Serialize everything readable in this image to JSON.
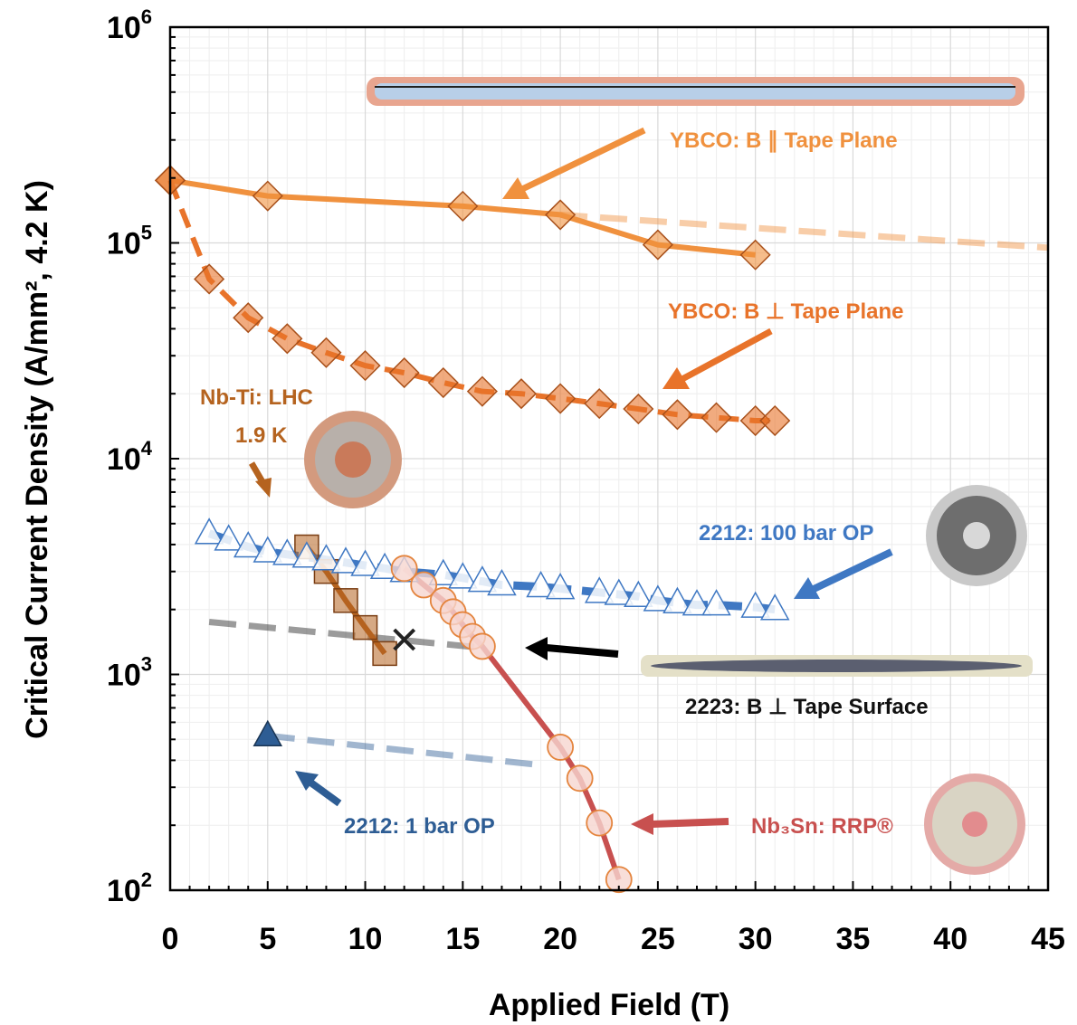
{
  "chart_data": {
    "type": "line",
    "xlabel": "Applied Field (T)",
    "ylabel": "Critical Current Density (A/mm², 4.2 K)",
    "xlim": [
      0,
      45
    ],
    "ylim": [
      100,
      1000000
    ],
    "yscale": "log",
    "grid": true,
    "x_ticks": [
      "0",
      "5",
      "10",
      "15",
      "20",
      "25",
      "30",
      "35",
      "40",
      "45"
    ],
    "y_ticks": [
      {
        "value": 100,
        "base": "10",
        "exp": "2"
      },
      {
        "value": 1000,
        "base": "10",
        "exp": "3"
      },
      {
        "value": 10000,
        "base": "10",
        "exp": "4"
      },
      {
        "value": 100000,
        "base": "10",
        "exp": "5"
      },
      {
        "value": 1000000,
        "base": "10",
        "exp": "6"
      }
    ],
    "series": [
      {
        "name": "YBCO: B ∥ Tape Plane",
        "color": "#f0913e",
        "marker": "diamond",
        "x": [
          0,
          5,
          15,
          20,
          25,
          30
        ],
        "y": [
          195000,
          165000,
          148000,
          135000,
          98000,
          88000
        ],
        "extrapolation": {
          "x": [
            20,
            45
          ],
          "y": [
            135000,
            95000
          ]
        }
      },
      {
        "name": "YBCO: B ⊥ Tape Plane",
        "color": "#e8732a",
        "marker": "diamond",
        "x": [
          0,
          2,
          4,
          6,
          8,
          10,
          12,
          14,
          16,
          18,
          20,
          22,
          24,
          26,
          28,
          30,
          31
        ],
        "y": [
          195000,
          68000,
          45000,
          36000,
          31000,
          27000,
          25000,
          22500,
          20500,
          20000,
          19000,
          18000,
          17000,
          16000,
          15500,
          15000,
          15000
        ]
      },
      {
        "name": "Nb-Ti: LHC 1.9 K",
        "color": "#b5631f",
        "marker": "square",
        "x": [
          7,
          8,
          9,
          10,
          11
        ],
        "y": [
          3900,
          3000,
          2200,
          1650,
          1250
        ]
      },
      {
        "name": "2212: 100 bar OP",
        "color": "#3f78c3",
        "marker": "triangle",
        "x": [
          2,
          3,
          4,
          5,
          6,
          7,
          8,
          9,
          10,
          11,
          12,
          14,
          15,
          16,
          17,
          19,
          20,
          22,
          23,
          24,
          25,
          26,
          27,
          28,
          30,
          31
        ],
        "y": [
          4500,
          4200,
          3900,
          3700,
          3600,
          3500,
          3400,
          3300,
          3200,
          3100,
          3000,
          2900,
          2800,
          2700,
          2600,
          2550,
          2500,
          2400,
          2350,
          2300,
          2200,
          2150,
          2100,
          2100,
          2050,
          2000
        ]
      },
      {
        "name": "2223: B ⊥ Tape Surface",
        "color": "#222222",
        "marker": "x",
        "x": [
          12
        ],
        "y": [
          1450
        ],
        "extrapolation": {
          "x": [
            2,
            16
          ],
          "y": [
            1750,
            1330
          ]
        }
      },
      {
        "name": "Nb₃Sn: RRP®",
        "color": "#c8504f",
        "marker": "circle",
        "x": [
          12,
          13,
          14,
          14.5,
          15,
          15.5,
          16,
          20,
          21,
          22,
          23
        ],
        "y": [
          3100,
          2600,
          2200,
          1950,
          1700,
          1500,
          1350,
          460,
          330,
          205,
          112
        ]
      },
      {
        "name": "2212: 1 bar OP",
        "color": "#2e5d94",
        "marker": "triangle-filled",
        "x": [
          5
        ],
        "y": [
          520
        ],
        "extrapolation": {
          "x": [
            5,
            19
          ],
          "y": [
            520,
            380
          ]
        }
      }
    ],
    "annotations": [
      {
        "key": "ybco_par",
        "text": "YBCO: B ∥ Tape Plane",
        "color": "#f0913e"
      },
      {
        "key": "ybco_perp",
        "text": "YBCO: B ⊥ Tape Plane",
        "color": "#e8732a"
      },
      {
        "key": "nbti_1",
        "text": "Nb-Ti: LHC",
        "color": "#b5631f"
      },
      {
        "key": "nbti_2",
        "text": "1.9 K",
        "color": "#b5631f"
      },
      {
        "key": "b2212_100",
        "text": "2212: 100 bar OP",
        "color": "#3f78c3"
      },
      {
        "key": "b2223",
        "text": "2223: B ⊥ Tape Surface",
        "color": "#111111"
      },
      {
        "key": "b2212_1",
        "text": "2212: 1 bar OP",
        "color": "#2e5d94"
      },
      {
        "key": "nb3sn",
        "text": "Nb₃Sn: RRP®",
        "color": "#c8504f"
      }
    ]
  }
}
